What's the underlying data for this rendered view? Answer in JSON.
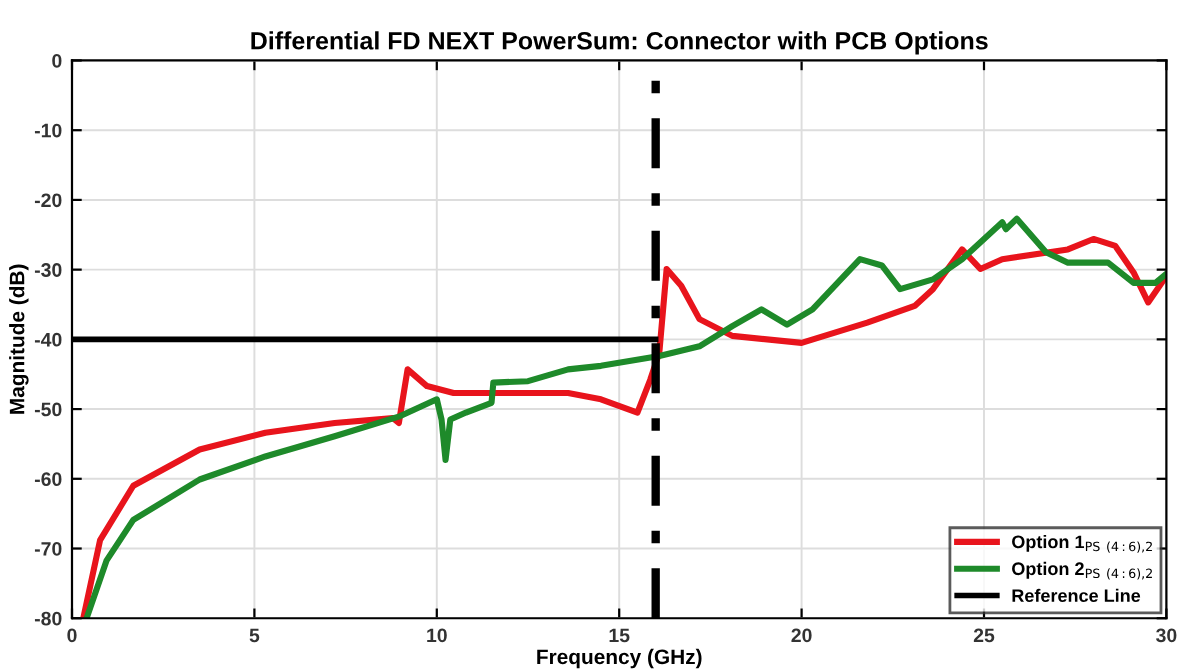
{
  "chart_data": {
    "type": "line",
    "title": "Differential FD NEXT PowerSum: Connector with PCB Options",
    "xlabel": "Frequency (GHz)",
    "ylabel": "Magnitude (dB)",
    "xlim": [
      0,
      30
    ],
    "ylim": [
      -80,
      0
    ],
    "xticks": [
      0,
      5,
      10,
      15,
      20,
      25,
      30
    ],
    "yticks": [
      -80,
      -70,
      -60,
      -50,
      -40,
      -30,
      -20,
      -10,
      0
    ],
    "grid": true,
    "legend": "bottom right",
    "series": [
      {
        "name": "Option 1$_{PS (4:6),2}$",
        "color": "#e8141c",
        "x": [
          0.31,
          0.77,
          1.68,
          3.5,
          5.3,
          7.2,
          8.8,
          8.96,
          9.2,
          9.73,
          10.46,
          13.6,
          14.5,
          15.5,
          15.85,
          16.1,
          16.3,
          16.7,
          17.2,
          18.1,
          20,
          21.8,
          23.1,
          23.6,
          24.4,
          24.9,
          25.5,
          27.3,
          28.0,
          28.6,
          29.1,
          29.5,
          30
        ],
        "values": [
          -80,
          -68.8,
          -61,
          -55.8,
          -53.4,
          -52,
          -51.3,
          -52,
          -44.3,
          -46.7,
          -47.7,
          -47.7,
          -48.6,
          -50.5,
          -45.8,
          -41.9,
          -29.9,
          -32.3,
          -37.1,
          -39.5,
          -40.5,
          -37.6,
          -35.2,
          -32.8,
          -27.1,
          -29.9,
          -28.5,
          -27.1,
          -25.6,
          -26.6,
          -30.4,
          -34.7,
          -30.9
        ]
      },
      {
        "name": "Option 2$_{PS (4:6),2}$",
        "color": "#1e8a2a",
        "x": [
          0.4,
          0.95,
          1.68,
          3.5,
          5.3,
          7.2,
          9.0,
          10.0,
          10.13,
          10.24,
          10.37,
          10.8,
          11.5,
          11.55,
          12.5,
          13.6,
          14.5,
          16.1,
          17.2,
          18.1,
          18.9,
          19.6,
          20.3,
          21.6,
          22.2,
          22.7,
          23.6,
          24.4,
          25.5,
          25.6,
          25.9,
          26.7,
          27.3,
          28.4,
          29.1,
          29.7,
          30
        ],
        "values": [
          -80,
          -71.7,
          -65.9,
          -60.1,
          -56.8,
          -53.9,
          -51.0,
          -48.6,
          -51.5,
          -57.3,
          -51.5,
          -50.5,
          -49.1,
          -46.2,
          -46,
          -44.3,
          -43.8,
          -42.4,
          -41,
          -38.1,
          -35.7,
          -37.9,
          -35.7,
          -28.5,
          -29.4,
          -32.8,
          -31.4,
          -28.5,
          -23.2,
          -24.2,
          -22.7,
          -27.5,
          -29,
          -29,
          -31.9,
          -31.9,
          -30.6
        ]
      },
      {
        "name": "Reference Line",
        "color": "#000000",
        "x": [
          0,
          16
        ],
        "values": [
          -40,
          -40
        ]
      }
    ],
    "ref_lines": [
      {
        "axis": "x",
        "value": 16,
        "color": "#000000",
        "line_style": "dashdot"
      }
    ]
  }
}
